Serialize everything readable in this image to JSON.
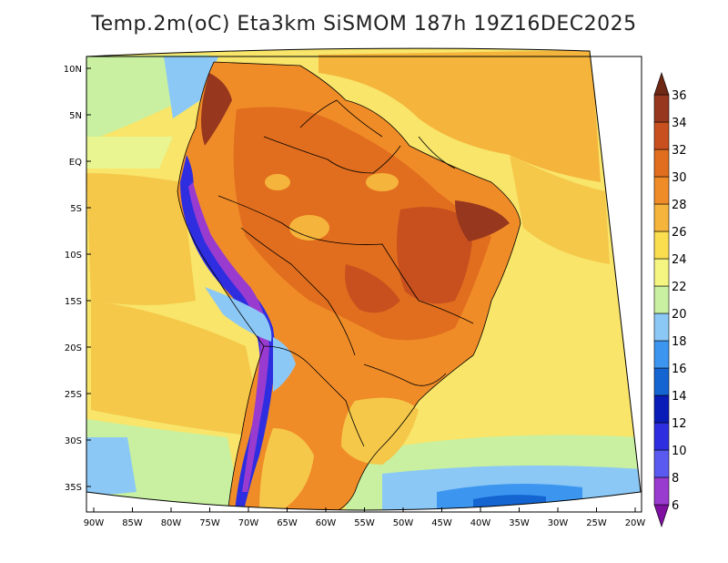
{
  "title": "Temp.2m(oC) Eta3km SiSMOM 187h 19Z16DEC2025",
  "lat_labels": [
    "10N",
    "5N",
    "EQ",
    "5S",
    "10S",
    "15S",
    "20S",
    "25S",
    "30S",
    "35S"
  ],
  "lon_labels": [
    "90W",
    "85W",
    "80W",
    "75W",
    "70W",
    "65W",
    "60W",
    "55W",
    "50W",
    "45W",
    "40W",
    "35W",
    "30W",
    "25W",
    "20W"
  ],
  "colorbar": {
    "labels": [
      "6",
      "8",
      "10",
      "12",
      "14",
      "16",
      "18",
      "20",
      "22",
      "24",
      "26",
      "28",
      "30",
      "32",
      "34",
      "36"
    ],
    "colors": [
      "#7f0fa0",
      "#9a3bd0",
      "#5a5af0",
      "#2e2ee0",
      "#0a1cb8",
      "#1464d2",
      "#3c96f0",
      "#8cc8f5",
      "#c8f0a0",
      "#f5f582",
      "#fade50",
      "#f5b43c",
      "#f08c28",
      "#e16e1e",
      "#c8501e",
      "#96371e",
      "#6e2814"
    ]
  }
}
